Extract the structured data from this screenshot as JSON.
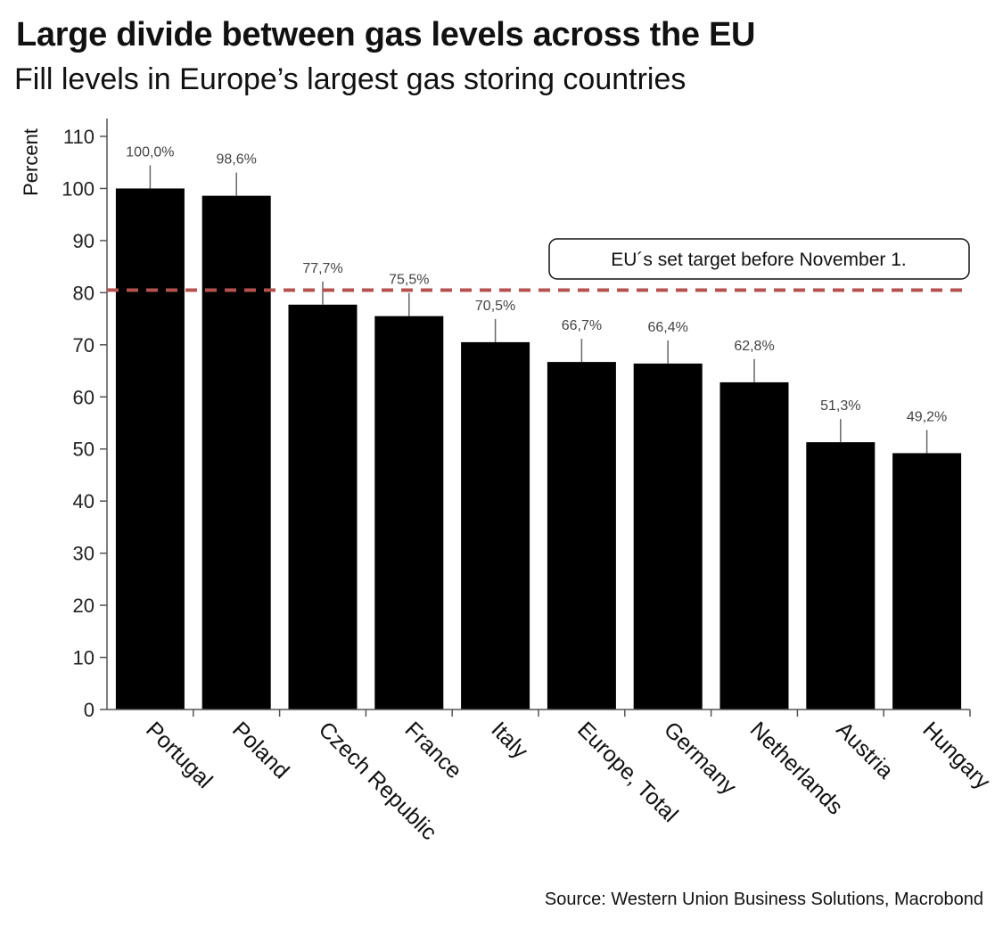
{
  "header": {
    "title": "Large divide between gas levels across the EU",
    "subtitle": "Fill levels in Europe’s largest gas storing countries"
  },
  "footer": {
    "source": "Source: Western Union Business Solutions, Macrobond"
  },
  "colors": {
    "bar": "#000000",
    "target_line": "#b5524f",
    "axis": "#555555"
  },
  "chart_data": {
    "type": "bar",
    "ylabel": "Percent",
    "xlabel": "",
    "ylim": [
      0,
      110
    ],
    "yticks": [
      0,
      10,
      20,
      30,
      40,
      50,
      60,
      70,
      80,
      90,
      100,
      110
    ],
    "grid": false,
    "categories": [
      "Portugal",
      "Poland",
      "Czech Republic",
      "France",
      "Italy",
      "Europe, Total",
      "Germany",
      "Netherlands",
      "Austria",
      "Hungary"
    ],
    "values": [
      100.0,
      98.6,
      77.7,
      75.5,
      70.5,
      66.7,
      66.4,
      62.8,
      51.3,
      49.2
    ],
    "value_labels": [
      "100,0%",
      "98,6%",
      "77,7%",
      "75,5%",
      "70,5%",
      "66,7%",
      "66,4%",
      "62,8%",
      "51,3%",
      "49,2%"
    ],
    "reference_line": {
      "value": 80.5,
      "style": "dashed",
      "annotation": "EU´s set target before  November 1."
    }
  }
}
